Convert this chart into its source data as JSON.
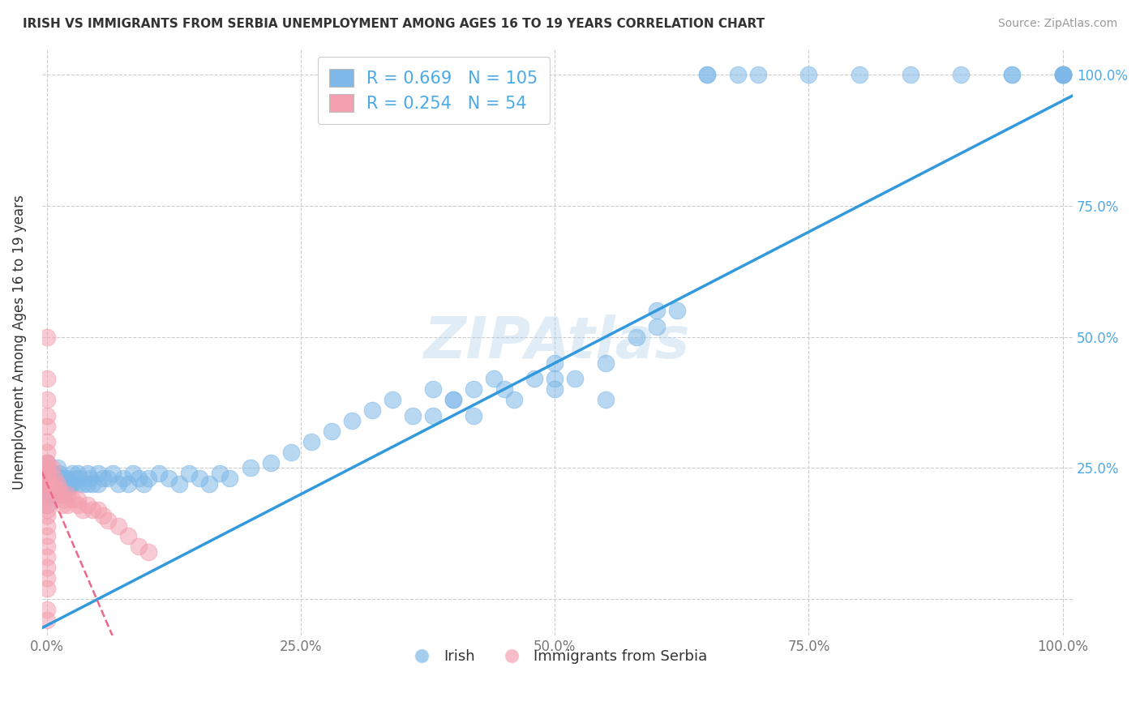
{
  "title": "IRISH VS IMMIGRANTS FROM SERBIA UNEMPLOYMENT AMONG AGES 16 TO 19 YEARS CORRELATION CHART",
  "source": "Source: ZipAtlas.com",
  "ylabel": "Unemployment Among Ages 16 to 19 years",
  "irish_R": 0.669,
  "irish_N": 105,
  "serbia_R": 0.254,
  "serbia_N": 54,
  "xlim": [
    -0.005,
    1.01
  ],
  "ylim": [
    -0.07,
    1.05
  ],
  "xticks": [
    0.0,
    0.25,
    0.5,
    0.75,
    1.0
  ],
  "yticks": [
    0.0,
    0.25,
    0.5,
    0.75,
    1.0
  ],
  "xticklabels": [
    "0.0%",
    "25.0%",
    "50.0%",
    "75.0%",
    "100.0%"
  ],
  "right_yticklabels": [
    "",
    "25.0%",
    "50.0%",
    "75.0%",
    "100.0%"
  ],
  "watermark": "ZIPAtlas",
  "irish_color": "#7EB8E8",
  "serbia_color": "#F4A0B0",
  "trendline_irish_color": "#3399DD",
  "trendline_serbia_color": "#EE6688",
  "background_color": "#FFFFFF",
  "irish_x": [
    0.0,
    0.0,
    0.0,
    0.0,
    0.0,
    0.0,
    0.0,
    0.0,
    0.005,
    0.005,
    0.005,
    0.005,
    0.007,
    0.007,
    0.008,
    0.01,
    0.01,
    0.01,
    0.01,
    0.012,
    0.012,
    0.014,
    0.015,
    0.015,
    0.017,
    0.018,
    0.02,
    0.02,
    0.022,
    0.025,
    0.025,
    0.027,
    0.03,
    0.03,
    0.032,
    0.035,
    0.04,
    0.04,
    0.042,
    0.045,
    0.05,
    0.05,
    0.055,
    0.06,
    0.065,
    0.07,
    0.075,
    0.08,
    0.085,
    0.09,
    0.095,
    0.1,
    0.11,
    0.12,
    0.13,
    0.14,
    0.15,
    0.16,
    0.17,
    0.18,
    0.2,
    0.22,
    0.24,
    0.26,
    0.28,
    0.3,
    0.32,
    0.34,
    0.36,
    0.38,
    0.4,
    0.42,
    0.44,
    0.46,
    0.48,
    0.5,
    0.52,
    0.55,
    0.58,
    0.6,
    0.62,
    0.65,
    0.65,
    0.68,
    0.7,
    0.75,
    0.8,
    0.85,
    0.9,
    0.95,
    0.95,
    1.0,
    1.0,
    1.0,
    1.0,
    1.0,
    1.0,
    0.38,
    0.4,
    0.42,
    0.45,
    0.5,
    0.5,
    0.55,
    0.6
  ],
  "irish_y": [
    0.18,
    0.2,
    0.21,
    0.22,
    0.23,
    0.24,
    0.25,
    0.26,
    0.2,
    0.22,
    0.23,
    0.24,
    0.22,
    0.24,
    0.23,
    0.2,
    0.22,
    0.23,
    0.25,
    0.22,
    0.24,
    0.23,
    0.2,
    0.22,
    0.23,
    0.22,
    0.21,
    0.23,
    0.22,
    0.22,
    0.24,
    0.23,
    0.22,
    0.24,
    0.23,
    0.22,
    0.22,
    0.24,
    0.23,
    0.22,
    0.22,
    0.24,
    0.23,
    0.23,
    0.24,
    0.22,
    0.23,
    0.22,
    0.24,
    0.23,
    0.22,
    0.23,
    0.24,
    0.23,
    0.22,
    0.24,
    0.23,
    0.22,
    0.24,
    0.23,
    0.25,
    0.26,
    0.28,
    0.3,
    0.32,
    0.34,
    0.36,
    0.38,
    0.35,
    0.4,
    0.38,
    0.4,
    0.42,
    0.38,
    0.42,
    0.4,
    0.42,
    0.45,
    0.5,
    0.52,
    0.55,
    1.0,
    1.0,
    1.0,
    1.0,
    1.0,
    1.0,
    1.0,
    1.0,
    1.0,
    1.0,
    1.0,
    1.0,
    1.0,
    1.0,
    1.0,
    1.0,
    0.35,
    0.38,
    0.35,
    0.4,
    0.45,
    0.42,
    0.38,
    0.55
  ],
  "serbia_x": [
    0.0,
    0.0,
    0.0,
    0.0,
    0.0,
    0.0,
    0.0,
    0.0,
    0.0,
    0.0,
    0.0,
    0.0,
    0.0,
    0.0,
    0.0,
    0.0,
    0.0,
    0.0,
    0.0,
    0.0,
    0.0,
    0.0,
    0.0,
    0.0,
    0.0,
    0.0,
    0.0,
    0.005,
    0.005,
    0.007,
    0.008,
    0.01,
    0.01,
    0.012,
    0.014,
    0.015,
    0.017,
    0.02,
    0.02,
    0.025,
    0.03,
    0.03,
    0.035,
    0.04,
    0.045,
    0.05,
    0.055,
    0.06,
    0.07,
    0.08,
    0.09,
    0.1,
    0.0,
    0.0
  ],
  "serbia_y": [
    0.5,
    0.42,
    0.38,
    0.35,
    0.33,
    0.3,
    0.28,
    0.26,
    0.24,
    0.22,
    0.2,
    0.18,
    0.16,
    0.14,
    0.12,
    0.1,
    0.08,
    0.06,
    0.04,
    0.02,
    0.21,
    0.23,
    0.25,
    0.26,
    0.22,
    0.19,
    0.17,
    0.25,
    0.22,
    0.23,
    0.21,
    0.22,
    0.2,
    0.21,
    0.2,
    0.18,
    0.19,
    0.2,
    0.18,
    0.19,
    0.18,
    0.19,
    0.17,
    0.18,
    0.17,
    0.17,
    0.16,
    0.15,
    0.14,
    0.12,
    0.1,
    0.09,
    -0.02,
    -0.04
  ]
}
